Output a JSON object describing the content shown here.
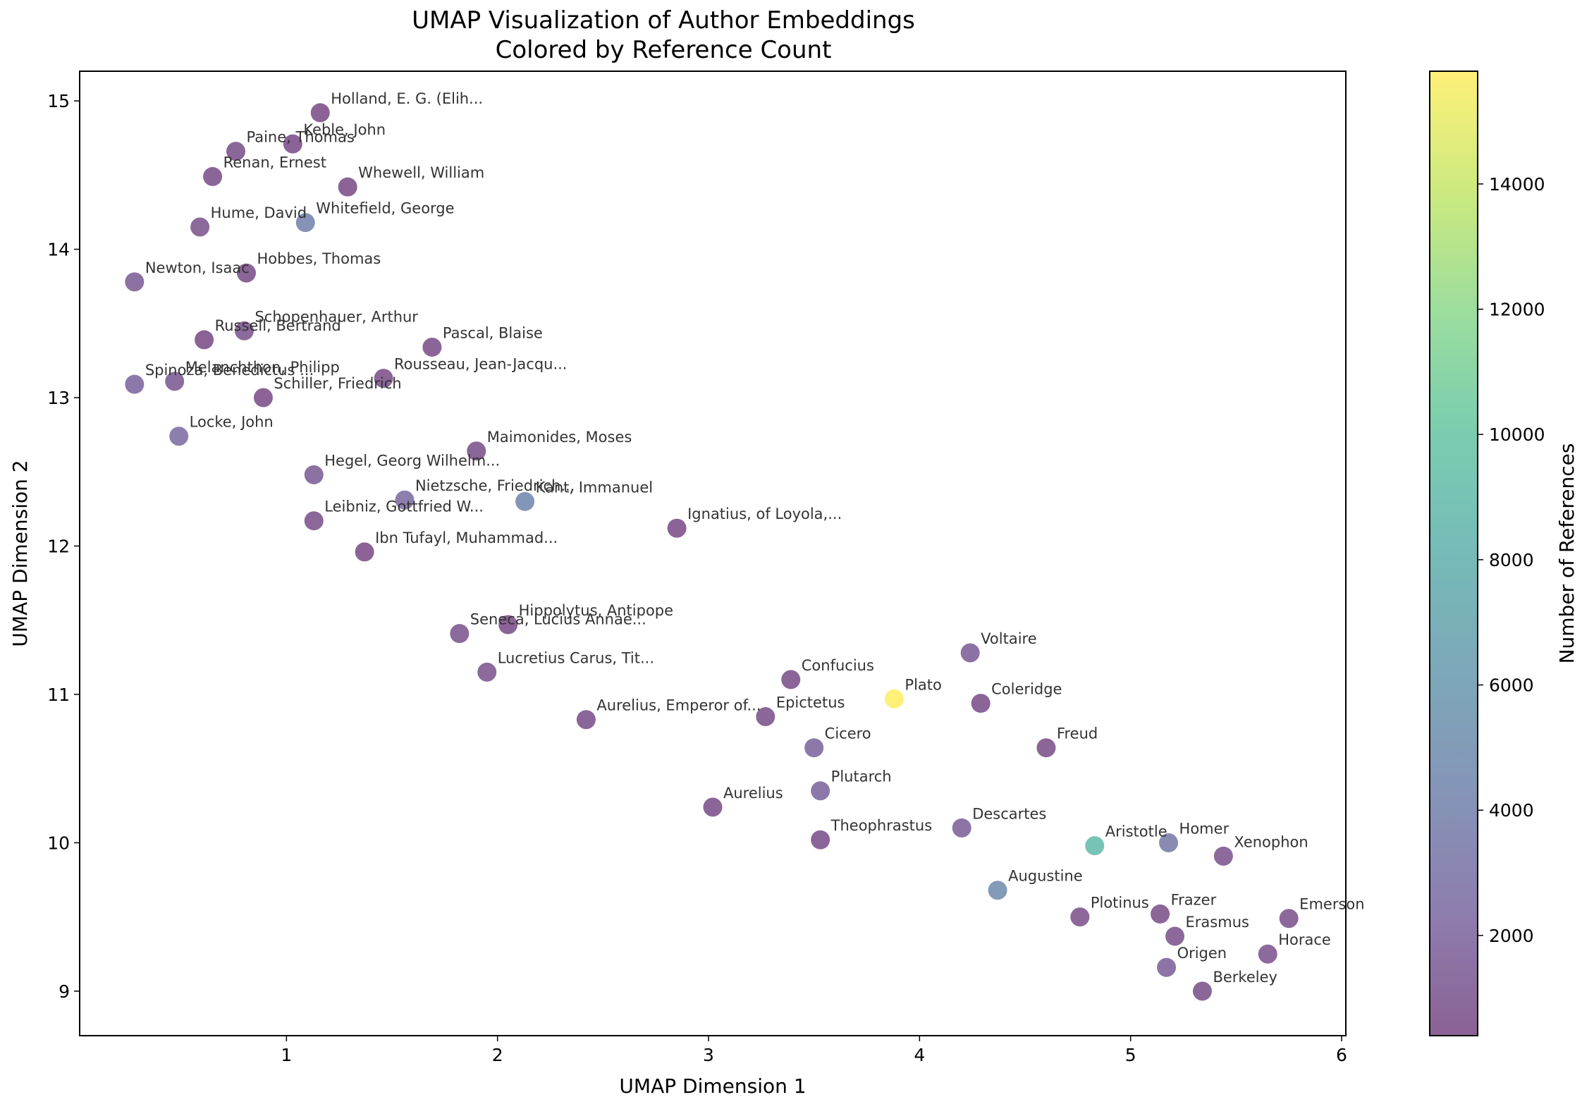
{
  "chart_data": {
    "type": "scatter",
    "title": "UMAP Visualization of Author Embeddings",
    "subtitle": "Colored by Reference Count",
    "xlabel": "UMAP Dimension 1",
    "ylabel": "UMAP Dimension 2",
    "xlim": [
      0.02,
      6.02
    ],
    "ylim": [
      8.7,
      15.2
    ],
    "xticks": [
      1,
      2,
      3,
      4,
      5,
      6
    ],
    "yticks": [
      9,
      10,
      11,
      12,
      13,
      14,
      15
    ],
    "grid": false,
    "colorbar": {
      "label": "Number of References",
      "colormap": "viridis",
      "range": [
        400,
        15800
      ],
      "ticks": [
        2000,
        4000,
        6000,
        8000,
        10000,
        12000,
        14000
      ]
    },
    "points": [
      {
        "label": "Holland, E. G. (Elih...",
        "x": 1.16,
        "y": 14.92,
        "refs": 500
      },
      {
        "label": "Keble, John",
        "x": 1.03,
        "y": 14.71,
        "refs": 500
      },
      {
        "label": "Paine, Thomas",
        "x": 0.76,
        "y": 14.66,
        "refs": 700
      },
      {
        "label": "Renan, Ernest",
        "x": 0.65,
        "y": 14.49,
        "refs": 600
      },
      {
        "label": "Whewell, William",
        "x": 1.29,
        "y": 14.42,
        "refs": 500
      },
      {
        "label": "Hume, David",
        "x": 0.59,
        "y": 14.15,
        "refs": 1000
      },
      {
        "label": "Whitefield, George",
        "x": 1.09,
        "y": 14.18,
        "refs": 4200
      },
      {
        "label": "Newton, Isaac",
        "x": 0.28,
        "y": 13.78,
        "refs": 1500
      },
      {
        "label": "Hobbes, Thomas",
        "x": 0.81,
        "y": 13.84,
        "refs": 600
      },
      {
        "label": "Schopenhauer, Arthur",
        "x": 0.8,
        "y": 13.45,
        "refs": 1000
      },
      {
        "label": "Russell, Bertrand",
        "x": 0.61,
        "y": 13.39,
        "refs": 500
      },
      {
        "label": "Pascal, Blaise",
        "x": 1.69,
        "y": 13.34,
        "refs": 600
      },
      {
        "label": "Rousseau, Jean-Jacqu...",
        "x": 1.46,
        "y": 13.13,
        "refs": 600
      },
      {
        "label": "Melanchthon, Philipp",
        "x": 0.47,
        "y": 13.11,
        "refs": 1200
      },
      {
        "label": "Spinoza, Benedictus ...",
        "x": 0.28,
        "y": 13.09,
        "refs": 2000
      },
      {
        "label": "Schiller, Friedrich",
        "x": 0.89,
        "y": 13.0,
        "refs": 500
      },
      {
        "label": "Locke, John",
        "x": 0.49,
        "y": 12.74,
        "refs": 2500
      },
      {
        "label": "Maimonides, Moses",
        "x": 1.9,
        "y": 12.64,
        "refs": 700
      },
      {
        "label": "Hegel, Georg Wilhelm...",
        "x": 1.13,
        "y": 12.48,
        "refs": 1500
      },
      {
        "label": "Nietzsche, Friedrich...",
        "x": 1.56,
        "y": 12.31,
        "refs": 2500
      },
      {
        "label": "Kant, Immanuel",
        "x": 2.13,
        "y": 12.3,
        "refs": 4500
      },
      {
        "label": "Leibniz, Gottfried W...",
        "x": 1.13,
        "y": 12.17,
        "refs": 800
      },
      {
        "label": "Ignatius, of Loyola,...",
        "x": 2.85,
        "y": 12.12,
        "refs": 500
      },
      {
        "label": "Ibn Tufayl, Muhammad...",
        "x": 1.37,
        "y": 11.96,
        "refs": 500
      },
      {
        "label": "Hippolytus, Antipope",
        "x": 2.05,
        "y": 11.47,
        "refs": 500
      },
      {
        "label": "Seneca, Lucius Annae...",
        "x": 1.82,
        "y": 11.41,
        "refs": 1000
      },
      {
        "label": "Lucretius Carus, Tit...",
        "x": 1.95,
        "y": 11.15,
        "refs": 1000
      },
      {
        "label": "Voltaire",
        "x": 4.24,
        "y": 11.28,
        "refs": 1500
      },
      {
        "label": "Confucius",
        "x": 3.39,
        "y": 11.1,
        "refs": 600
      },
      {
        "label": "Plato",
        "x": 3.88,
        "y": 10.97,
        "refs": 15800
      },
      {
        "label": "Coleridge",
        "x": 4.29,
        "y": 10.94,
        "refs": 600
      },
      {
        "label": "Aurelius, Emperor of...",
        "x": 2.42,
        "y": 10.83,
        "refs": 700
      },
      {
        "label": "Epictetus",
        "x": 3.27,
        "y": 10.85,
        "refs": 700
      },
      {
        "label": "Cicero",
        "x": 3.5,
        "y": 10.64,
        "refs": 2000
      },
      {
        "label": "Freud",
        "x": 4.6,
        "y": 10.64,
        "refs": 600
      },
      {
        "label": "Plutarch",
        "x": 3.53,
        "y": 10.35,
        "refs": 2000
      },
      {
        "label": "Aurelius",
        "x": 3.02,
        "y": 10.24,
        "refs": 600
      },
      {
        "label": "Descartes",
        "x": 4.2,
        "y": 10.1,
        "refs": 1800
      },
      {
        "label": "Theophrastus",
        "x": 3.53,
        "y": 10.02,
        "refs": 600
      },
      {
        "label": "Aristotle",
        "x": 4.83,
        "y": 9.98,
        "refs": 9000
      },
      {
        "label": "Homer",
        "x": 5.18,
        "y": 10.0,
        "refs": 3500
      },
      {
        "label": "Xenophon",
        "x": 5.44,
        "y": 9.91,
        "refs": 1000
      },
      {
        "label": "Augustine",
        "x": 4.37,
        "y": 9.68,
        "refs": 5000
      },
      {
        "label": "Plotinus",
        "x": 4.76,
        "y": 9.5,
        "refs": 800
      },
      {
        "label": "Frazer",
        "x": 5.14,
        "y": 9.52,
        "refs": 700
      },
      {
        "label": "Erasmus",
        "x": 5.21,
        "y": 9.37,
        "refs": 900
      },
      {
        "label": "Emerson",
        "x": 5.75,
        "y": 9.49,
        "refs": 800
      },
      {
        "label": "Origen",
        "x": 5.17,
        "y": 9.16,
        "refs": 1800
      },
      {
        "label": "Horace",
        "x": 5.65,
        "y": 9.25,
        "refs": 1000
      },
      {
        "label": "Berkeley",
        "x": 5.34,
        "y": 9.0,
        "refs": 700
      }
    ]
  }
}
